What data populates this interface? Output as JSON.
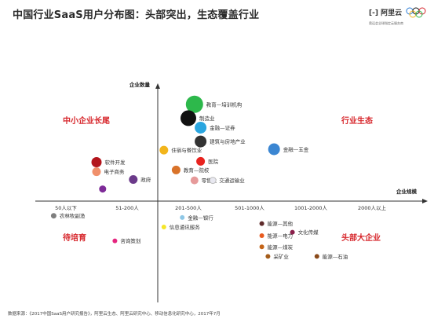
{
  "title": "中国行业SaaS用户分布图：头部突出，生态覆盖行业",
  "logo": {
    "name": "阿里云",
    "tagline": "奥运会全球指定云服务商"
  },
  "footer": "数据来源：《2017中国SaaS用户研究报告》，阿里云生态、阿里云研究中心、移动信息化研究中心，2017年7月",
  "chart_data": {
    "type": "scatter",
    "title": "中国行业SaaS用户分布图：头部突出，生态覆盖行业",
    "xlabel": "企业规模",
    "ylabel": "企业数量",
    "x_categories": [
      "50人以下",
      "51-200人",
      "201-500人",
      "501-1000人",
      "1001-2000人",
      "2000人以上"
    ],
    "quadrants": {
      "top_left": "中小企业长尾",
      "top_right": "行业生态",
      "bottom_left": "待培育",
      "bottom_right": "头部大企业"
    },
    "points": [
      {
        "label": "教育—培训机构",
        "x": 2.6,
        "y": 11.2,
        "size": 11,
        "color": "#2db84b"
      },
      {
        "label": "制造业",
        "x": 2.5,
        "y": 9.6,
        "size": 10,
        "color": "#111111"
      },
      {
        "label": "金融—证券",
        "x": 2.7,
        "y": 8.5,
        "size": 7.5,
        "color": "#2aa6e0"
      },
      {
        "label": "建筑与房地产业",
        "x": 2.7,
        "y": 6.9,
        "size": 7.5,
        "color": "#333333"
      },
      {
        "label": "金融—五金",
        "x": 3.9,
        "y": 6.0,
        "size": 7.5,
        "color": "#3b86d2"
      },
      {
        "label": "住宿与餐饮业",
        "x": 2.1,
        "y": 5.9,
        "size": 5.5,
        "color": "#f2b51c"
      },
      {
        "label": "软件开发",
        "x": 1.0,
        "y": 4.5,
        "size": 6.5,
        "color": "#b3151c"
      },
      {
        "label": "医院",
        "x": 2.7,
        "y": 4.6,
        "size": 5.5,
        "color": "#e8231f"
      },
      {
        "label": "电子商务",
        "x": 1.0,
        "y": 3.4,
        "size": 5.5,
        "color": "#f0906b"
      },
      {
        "label": "教育—院校",
        "x": 2.3,
        "y": 3.6,
        "size": 5.5,
        "color": "#d9732a"
      },
      {
        "label": "政府",
        "x": 1.6,
        "y": 2.5,
        "size": 5.5,
        "color": "#6b3a8a"
      },
      {
        "label": "零售业",
        "x": 2.6,
        "y": 2.4,
        "size": 5,
        "color": "#e69a9a"
      },
      {
        "label": "交通运输业",
        "x": 2.9,
        "y": 2.4,
        "size": 4,
        "color": "#e8e8f0"
      },
      {
        "label": "",
        "x": 1.1,
        "y": 1.4,
        "size": 4.5,
        "color": "#7e2b98"
      },
      {
        "label": "农林牧副渔",
        "x": 0.3,
        "y": -1.7,
        "size": 3.5,
        "color": "#7f7f7f"
      },
      {
        "label": "金融—银行",
        "x": 2.4,
        "y": -1.9,
        "size": 3,
        "color": "#8ec7e6"
      },
      {
        "label": "信息通讯服务",
        "x": 2.1,
        "y": -3.0,
        "size": 3,
        "color": "#f5e62a"
      },
      {
        "label": "能源—其他",
        "x": 3.7,
        "y": -2.6,
        "size": 3,
        "color": "#5e2a2a"
      },
      {
        "label": "文化传媒",
        "x": 4.2,
        "y": -3.6,
        "size": 3,
        "color": "#8a1f4a"
      },
      {
        "label": "能源—电力",
        "x": 3.7,
        "y": -4.0,
        "size": 3,
        "color": "#e85a1f"
      },
      {
        "label": "咨询策划",
        "x": 1.3,
        "y": -4.6,
        "size": 3,
        "color": "#e5267f"
      },
      {
        "label": "能源—煤炭",
        "x": 3.7,
        "y": -5.3,
        "size": 3,
        "color": "#c46418"
      },
      {
        "label": "采矿业",
        "x": 3.8,
        "y": -6.4,
        "size": 3,
        "color": "#a45c1a"
      },
      {
        "label": "能源—石油",
        "x": 4.6,
        "y": -6.4,
        "size": 3,
        "color": "#8a4a1a"
      }
    ]
  }
}
